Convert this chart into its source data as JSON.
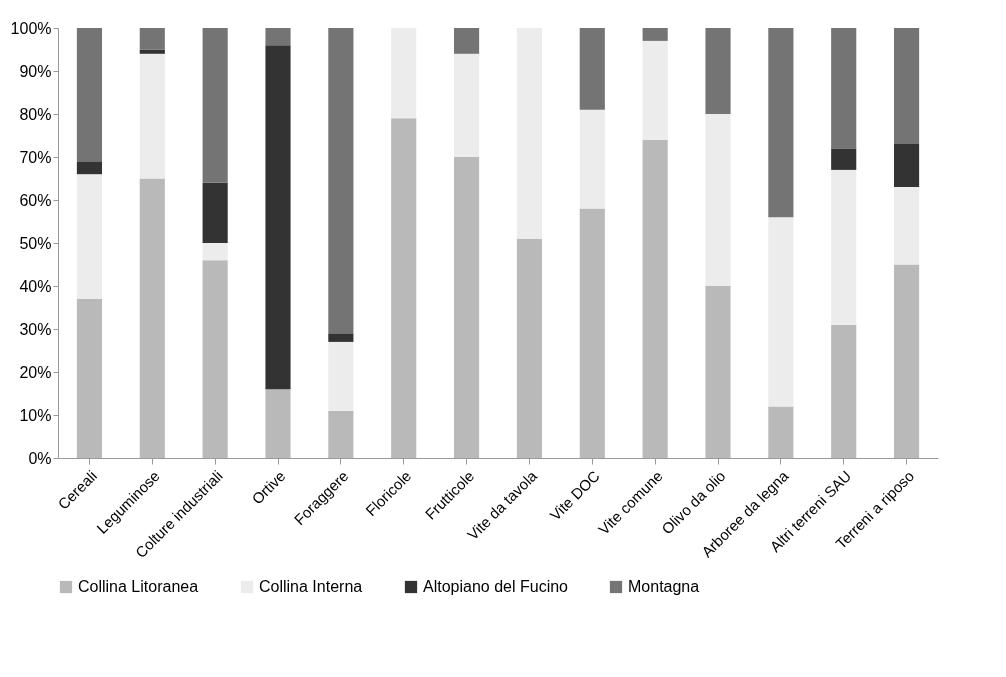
{
  "chart_data": {
    "type": "bar",
    "stacked": true,
    "categories": [
      "Cereali",
      "Leguminose",
      "Colture industriali",
      "Ortive",
      "Foraggere",
      "Floricole",
      "Frutticole",
      "Vite da tavola",
      "Vite DOC",
      "Vite comune",
      "Olivo da olio",
      "Arboree da legna",
      "Altri terreni SAU",
      "Terreni a riposo"
    ],
    "series": [
      {
        "name": "Collina Litoranea",
        "color": "#b9b9b9",
        "values": [
          37,
          65,
          46,
          16,
          11,
          79,
          70,
          51,
          58,
          74,
          40,
          12,
          31,
          45
        ]
      },
      {
        "name": "Collina Interna",
        "color": "#ececec",
        "values": [
          29,
          29,
          4,
          0,
          16,
          21,
          24,
          49,
          23,
          23,
          40,
          44,
          36,
          18
        ]
      },
      {
        "name": "Altopiano del Fucino",
        "color": "#333333",
        "values": [
          3,
          1,
          14,
          80,
          2,
          0,
          0,
          0,
          0,
          0,
          0,
          0,
          5,
          10
        ]
      },
      {
        "name": "Montagna",
        "color": "#747474",
        "values": [
          31,
          5,
          36,
          4,
          71,
          0,
          6,
          0,
          19,
          3,
          20,
          44,
          28,
          27
        ]
      }
    ],
    "ylim": [
      0,
      100
    ],
    "yticks": [
      {
        "value": 0,
        "label": "0%"
      },
      {
        "value": 10,
        "label": "10%"
      },
      {
        "value": 20,
        "label": "20%"
      },
      {
        "value": 30,
        "label": "30%"
      },
      {
        "value": 40,
        "label": "40%"
      },
      {
        "value": 50,
        "label": "50%"
      },
      {
        "value": 60,
        "label": "60%"
      },
      {
        "value": 70,
        "label": "70%"
      },
      {
        "value": 80,
        "label": "80%"
      },
      {
        "value": 90,
        "label": "90%"
      },
      {
        "value": 100,
        "label": "100%"
      }
    ],
    "grid": false,
    "legend": "bottom"
  }
}
